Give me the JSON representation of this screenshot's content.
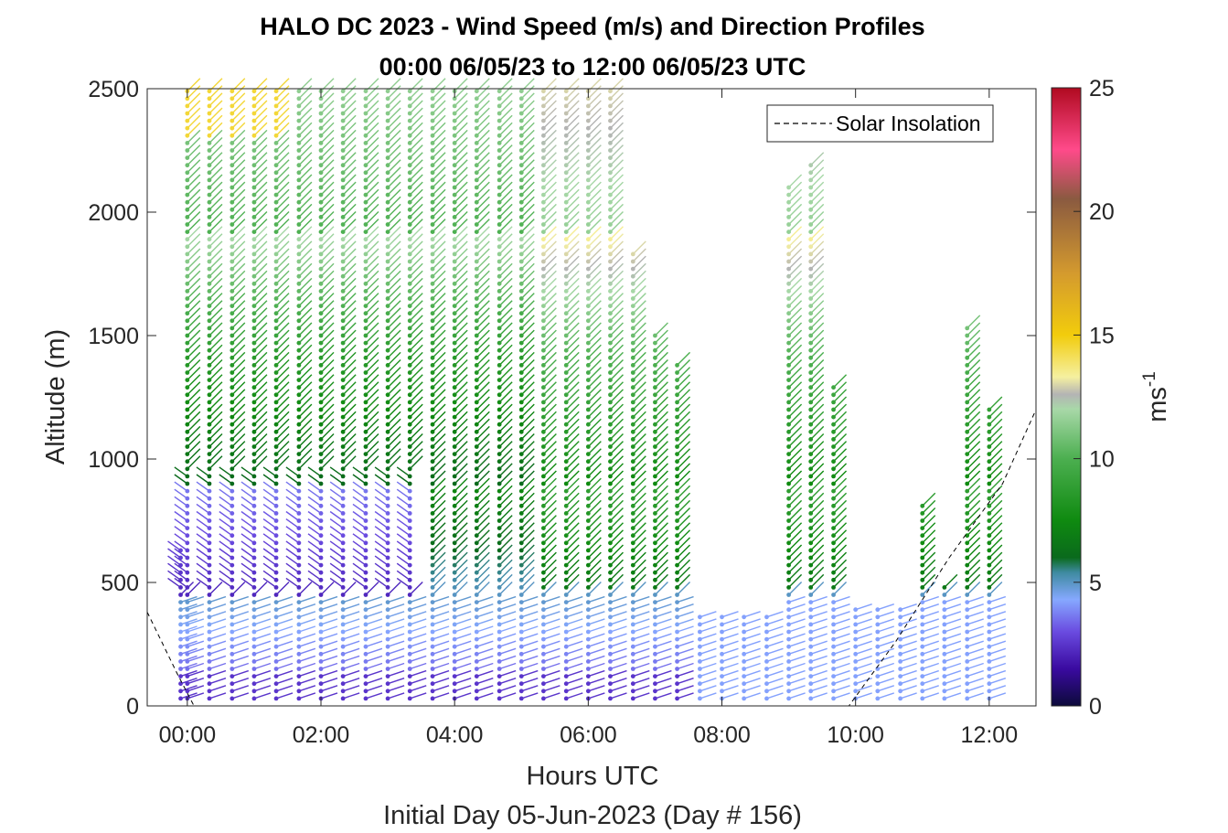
{
  "chart_data": {
    "type": "scatter",
    "title_line1": "HALO DC 2023 - Wind Speed (m/s) and Direction Profiles",
    "title_line2": "00:00 06/05/23 to 12:00 06/05/23  UTC",
    "xlabel": "Hours UTC",
    "x_sublabel": "Initial Day 05-Jun-2023 (Day # 156)",
    "ylabel": "Altitude (m)",
    "xlim_hours": [
      -0.6,
      12.7
    ],
    "ylim": [
      0,
      2500
    ],
    "x_ticks": [
      {
        "hour": 0,
        "label": "00:00"
      },
      {
        "hour": 2,
        "label": "02:00"
      },
      {
        "hour": 4,
        "label": "04:00"
      },
      {
        "hour": 6,
        "label": "06:00"
      },
      {
        "hour": 8,
        "label": "08:00"
      },
      {
        "hour": 10,
        "label": "10:00"
      },
      {
        "hour": 12,
        "label": "12:00"
      }
    ],
    "y_ticks": [
      {
        "value": 0,
        "label": "0"
      },
      {
        "value": 500,
        "label": "500"
      },
      {
        "value": 1000,
        "label": "1000"
      },
      {
        "value": 1500,
        "label": "1500"
      },
      {
        "value": 2000,
        "label": "2000"
      },
      {
        "value": 2500,
        "label": "2500"
      }
    ],
    "legend": {
      "entry": "Solar Insolation",
      "placement": "top-right",
      "style": "dashed black line"
    },
    "colorbar": {
      "label": "ms",
      "label_superscript": "-1",
      "range": [
        0,
        25
      ],
      "ticks": [
        {
          "value": 0,
          "label": "0"
        },
        {
          "value": 5,
          "label": "5"
        },
        {
          "value": 10,
          "label": "10"
        },
        {
          "value": 15,
          "label": "15"
        },
        {
          "value": 20,
          "label": "20"
        },
        {
          "value": 25,
          "label": "25"
        }
      ],
      "color_stops": [
        {
          "value": 0,
          "color": "#0c0a3a"
        },
        {
          "value": 1.5,
          "color": "#3a0aa0"
        },
        {
          "value": 3.0,
          "color": "#6a4be0"
        },
        {
          "value": 4.3,
          "color": "#86a8ff"
        },
        {
          "value": 5.4,
          "color": "#3e8aa0"
        },
        {
          "value": 6.0,
          "color": "#0a6a1c"
        },
        {
          "value": 7.5,
          "color": "#0f8a10"
        },
        {
          "value": 10.0,
          "color": "#4caf50"
        },
        {
          "value": 12.0,
          "color": "#a8d8a8"
        },
        {
          "value": 12.6,
          "color": "#b4b4b4"
        },
        {
          "value": 13.3,
          "color": "#f5f0a0"
        },
        {
          "value": 15.0,
          "color": "#f2cc0c"
        },
        {
          "value": 17.5,
          "color": "#d49a2e"
        },
        {
          "value": 20.5,
          "color": "#8a5a40"
        },
        {
          "value": 22.5,
          "color": "#ff4a8a"
        },
        {
          "value": 25,
          "color": "#b00a20"
        }
      ]
    },
    "solar_insolation_line": [
      [
        -0.6,
        380
      ],
      [
        -0.15,
        130
      ],
      [
        0.1,
        0
      ],
      [
        9.9,
        0
      ],
      [
        10.6,
        260
      ],
      [
        11.4,
        600
      ],
      [
        12.2,
        900
      ],
      [
        12.7,
        1200
      ]
    ],
    "profile_columns": [
      {
        "hour": -0.1,
        "top": 650
      },
      {
        "hour": 0.0,
        "top": 2500
      },
      {
        "hour": 0.33,
        "top": 2500
      },
      {
        "hour": 0.67,
        "top": 2500
      },
      {
        "hour": 1.0,
        "top": 2500
      },
      {
        "hour": 1.33,
        "top": 2500
      },
      {
        "hour": 1.67,
        "top": 2500
      },
      {
        "hour": 2.0,
        "top": 2500
      },
      {
        "hour": 2.33,
        "top": 2500
      },
      {
        "hour": 2.67,
        "top": 2500
      },
      {
        "hour": 3.0,
        "top": 2500
      },
      {
        "hour": 3.33,
        "top": 2500
      },
      {
        "hour": 3.67,
        "top": 2500
      },
      {
        "hour": 4.0,
        "top": 2500
      },
      {
        "hour": 4.33,
        "top": 2500
      },
      {
        "hour": 4.67,
        "top": 2500
      },
      {
        "hour": 5.0,
        "top": 2500
      },
      {
        "hour": 5.33,
        "top": 2500
      },
      {
        "hour": 5.67,
        "top": 2500
      },
      {
        "hour": 6.0,
        "top": 2500
      },
      {
        "hour": 6.33,
        "top": 2500
      },
      {
        "hour": 6.67,
        "top": 1850
      },
      {
        "hour": 7.0,
        "top": 1500
      },
      {
        "hour": 7.33,
        "top": 1400
      },
      {
        "hour": 7.67,
        "top": 380
      },
      {
        "hour": 8.0,
        "top": 380
      },
      {
        "hour": 8.33,
        "top": 380
      },
      {
        "hour": 8.67,
        "top": 380
      },
      {
        "hour": 9.0,
        "top": 2100
      },
      {
        "hour": 9.33,
        "top": 2200
      },
      {
        "hour": 9.67,
        "top": 1300
      },
      {
        "hour": 10.0,
        "top": 400
      },
      {
        "hour": 10.33,
        "top": 400
      },
      {
        "hour": 10.67,
        "top": 400
      },
      {
        "hour": 11.0,
        "top": 820
      },
      {
        "hour": 11.33,
        "top": 500
      },
      {
        "hour": 11.67,
        "top": 1550
      },
      {
        "hour": 12.0,
        "top": 1200
      }
    ]
  }
}
